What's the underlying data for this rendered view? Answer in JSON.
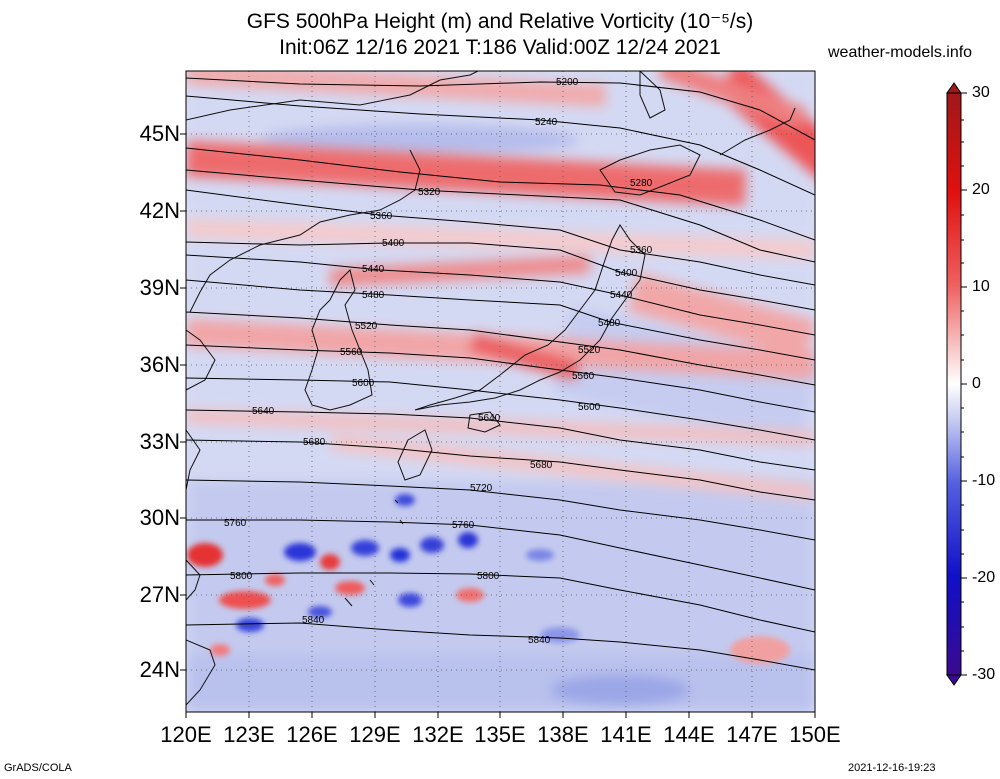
{
  "title_line1": "GFS 500hPa Height (m) and Relative Vorticity (10⁻⁵/s)",
  "title_line2": "Init:06Z 12/16 2021 T:186 Valid:00Z 12/24 2021",
  "site": "weather-models.info",
  "footer_left": "GrADS/COLA",
  "footer_right": "2021-12-16-19:23",
  "lat_labels": [
    "45N",
    "42N",
    "39N",
    "36N",
    "33N",
    "30N",
    "27N",
    "24N"
  ],
  "lon_labels": [
    "120E",
    "123E",
    "126E",
    "129E",
    "132E",
    "135E",
    "138E",
    "141E",
    "144E",
    "147E",
    "150E"
  ],
  "colorbar_labels": [
    "30",
    "20",
    "10",
    "0",
    "-10",
    "-20",
    "-30"
  ],
  "contour_labels": [
    "5200",
    "5240",
    "5280",
    "5320",
    "5360",
    "5360",
    "5400",
    "5400",
    "5440",
    "5440",
    "5480",
    "5480",
    "5520",
    "5520",
    "5560",
    "5560",
    "5600",
    "5600",
    "5640",
    "5640",
    "5680",
    "5680",
    "5720",
    "5760",
    "5760",
    "5800",
    "5800",
    "5840",
    "5840"
  ],
  "colors": {
    "positive_vorticity": "#e8262a",
    "negative_vorticity": "#1a22d0",
    "neutral": "#ffffff",
    "contour": "#000000"
  }
}
